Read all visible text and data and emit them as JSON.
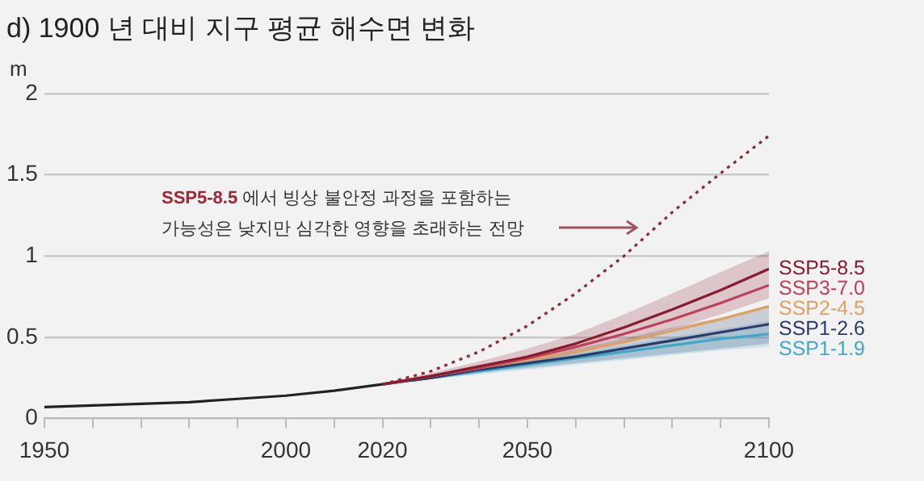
{
  "chart_data": {
    "type": "line",
    "title": "d) 1900 년 대비 지구 평균 해수면 변화",
    "ylabel": "m",
    "xlim": [
      1950,
      2100
    ],
    "xticks": [
      1950,
      {
        "value": 1960,
        "label": null
      },
      {
        "value": 1970,
        "label": null
      },
      {
        "value": 1980,
        "label": null
      },
      {
        "value": 1990,
        "label": null
      },
      2000,
      {
        "value": 2010,
        "label": null
      },
      2020,
      {
        "value": 2030,
        "label": null
      },
      {
        "value": 2040,
        "label": null
      },
      2050,
      {
        "value": 2060,
        "label": null
      },
      {
        "value": 2070,
        "label": null
      },
      {
        "value": 2080,
        "label": null
      },
      {
        "value": 2090,
        "label": null
      },
      2100
    ],
    "ylim": [
      0,
      2
    ],
    "yticks": [
      0,
      0.5,
      1,
      1.5,
      2
    ],
    "grid": "y",
    "legend": false,
    "marker": "none",
    "annotations": [
      "SSP5-8.5 에서 빙상 불안정 과정을 포함하는",
      "가능성은 낮지만 심각한 영향을 초래하는 전망"
    ],
    "series": [
      {
        "color": "#222222",
        "x": [
          1950,
          1960,
          1970,
          1980,
          1990,
          2000,
          2010,
          2020
        ],
        "values": [
          0.07,
          0.08,
          0.09,
          0.1,
          0.12,
          0.14,
          0.17,
          0.21
        ]
      },
      {
        "color": "#8b2a3a",
        "line_style": "dotted",
        "x": [
          2020,
          2030,
          2040,
          2050,
          2060,
          2070,
          2080,
          2090,
          2100
        ],
        "values": [
          0.21,
          0.29,
          0.41,
          0.57,
          0.77,
          1.0,
          1.27,
          1.51,
          1.74
        ]
      },
      {
        "name": "SSP5-8.5",
        "color": "#8b1a2e",
        "x": [
          2020,
          2030,
          2040,
          2050,
          2060,
          2070,
          2080,
          2090,
          2100
        ],
        "values": [
          0.21,
          0.26,
          0.32,
          0.38,
          0.46,
          0.56,
          0.67,
          0.79,
          0.92
        ],
        "lower": [
          0.21,
          0.24,
          0.29,
          0.34,
          0.4,
          0.47,
          0.55,
          0.64,
          0.74
        ],
        "upper": [
          0.21,
          0.28,
          0.35,
          0.43,
          0.52,
          0.64,
          0.77,
          0.9,
          1.03
        ]
      },
      {
        "name": "SSP3-7.0",
        "color": "#c0405a",
        "x": [
          2020,
          2030,
          2040,
          2050,
          2060,
          2070,
          2080,
          2090,
          2100
        ],
        "values": [
          0.21,
          0.26,
          0.31,
          0.37,
          0.44,
          0.52,
          0.61,
          0.71,
          0.82
        ]
      },
      {
        "name": "SSP2-4.5",
        "color": "#e0a060",
        "x": [
          2020,
          2030,
          2040,
          2050,
          2060,
          2070,
          2080,
          2090,
          2100
        ],
        "values": [
          0.21,
          0.26,
          0.31,
          0.36,
          0.41,
          0.47,
          0.54,
          0.61,
          0.69
        ]
      },
      {
        "name": "SSP1-2.6",
        "color": "#2a3a6a",
        "x": [
          2020,
          2030,
          2040,
          2050,
          2060,
          2070,
          2080,
          2090,
          2100
        ],
        "values": [
          0.21,
          0.25,
          0.3,
          0.34,
          0.38,
          0.43,
          0.48,
          0.53,
          0.58
        ],
        "lower": [
          0.21,
          0.24,
          0.28,
          0.31,
          0.34,
          0.37,
          0.4,
          0.43,
          0.46
        ],
        "upper": [
          0.21,
          0.27,
          0.33,
          0.38,
          0.43,
          0.49,
          0.56,
          0.62,
          0.69
        ]
      },
      {
        "name": "SSP1-1.9",
        "color": "#3fa9c9",
        "x": [
          2020,
          2030,
          2040,
          2050,
          2060,
          2070,
          2080,
          2090,
          2100
        ],
        "values": [
          0.21,
          0.25,
          0.29,
          0.33,
          0.37,
          0.41,
          0.45,
          0.49,
          0.52
        ],
        "lower": [
          0.21,
          0.24,
          0.27,
          0.3,
          0.33,
          0.36,
          0.39,
          0.42,
          0.44
        ],
        "upper": [
          0.21,
          0.26,
          0.31,
          0.36,
          0.4,
          0.45,
          0.5,
          0.55,
          0.6
        ]
      }
    ]
  }
}
